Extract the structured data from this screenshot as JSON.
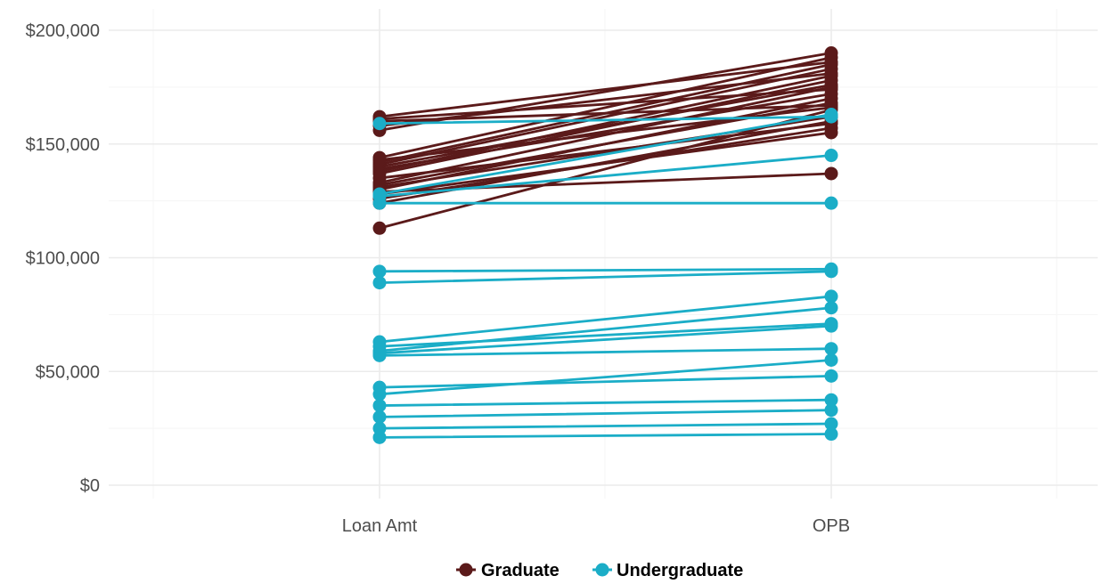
{
  "chart_data": {
    "type": "line",
    "categories": [
      "Loan Amt",
      "OPB"
    ],
    "ylim": [
      0,
      200000
    ],
    "y_ticks": [
      0,
      50000,
      100000,
      150000,
      200000
    ],
    "y_tick_labels": [
      "$0",
      "$50,000",
      "$100,000",
      "$150,000",
      "$200,000"
    ],
    "grid": true,
    "legend_position": "bottom",
    "series": [
      {
        "name": "Graduate",
        "color": "#5b1a1a",
        "pairs": [
          [
            113000,
            165000
          ],
          [
            124000,
            160000
          ],
          [
            126000,
            157000
          ],
          [
            128000,
            155000
          ],
          [
            129000,
            137000
          ],
          [
            130000,
            170000
          ],
          [
            131000,
            162000
          ],
          [
            132000,
            168000
          ],
          [
            133000,
            175000
          ],
          [
            135000,
            159000
          ],
          [
            137000,
            178000
          ],
          [
            138000,
            180000
          ],
          [
            139000,
            172000
          ],
          [
            140000,
            176000
          ],
          [
            141000,
            183000
          ],
          [
            142000,
            185000
          ],
          [
            143000,
            166000
          ],
          [
            144000,
            188000
          ],
          [
            156000,
            190000
          ],
          [
            158000,
            181000
          ],
          [
            160000,
            167000
          ],
          [
            161000,
            174000
          ],
          [
            162000,
            186000
          ]
        ]
      },
      {
        "name": "Undergraduate",
        "color": "#1badc7",
        "pairs": [
          [
            21000,
            22500
          ],
          [
            25000,
            27000
          ],
          [
            30000,
            33000
          ],
          [
            35000,
            37500
          ],
          [
            40000,
            55000
          ],
          [
            43000,
            48000
          ],
          [
            57000,
            60000
          ],
          [
            58000,
            70000
          ],
          [
            59000,
            78000
          ],
          [
            61000,
            71000
          ],
          [
            63000,
            83000
          ],
          [
            89000,
            94000
          ],
          [
            94000,
            95000
          ],
          [
            124000,
            124000
          ],
          [
            127000,
            145000
          ],
          [
            128000,
            163000
          ],
          [
            159000,
            162000
          ]
        ]
      }
    ]
  }
}
